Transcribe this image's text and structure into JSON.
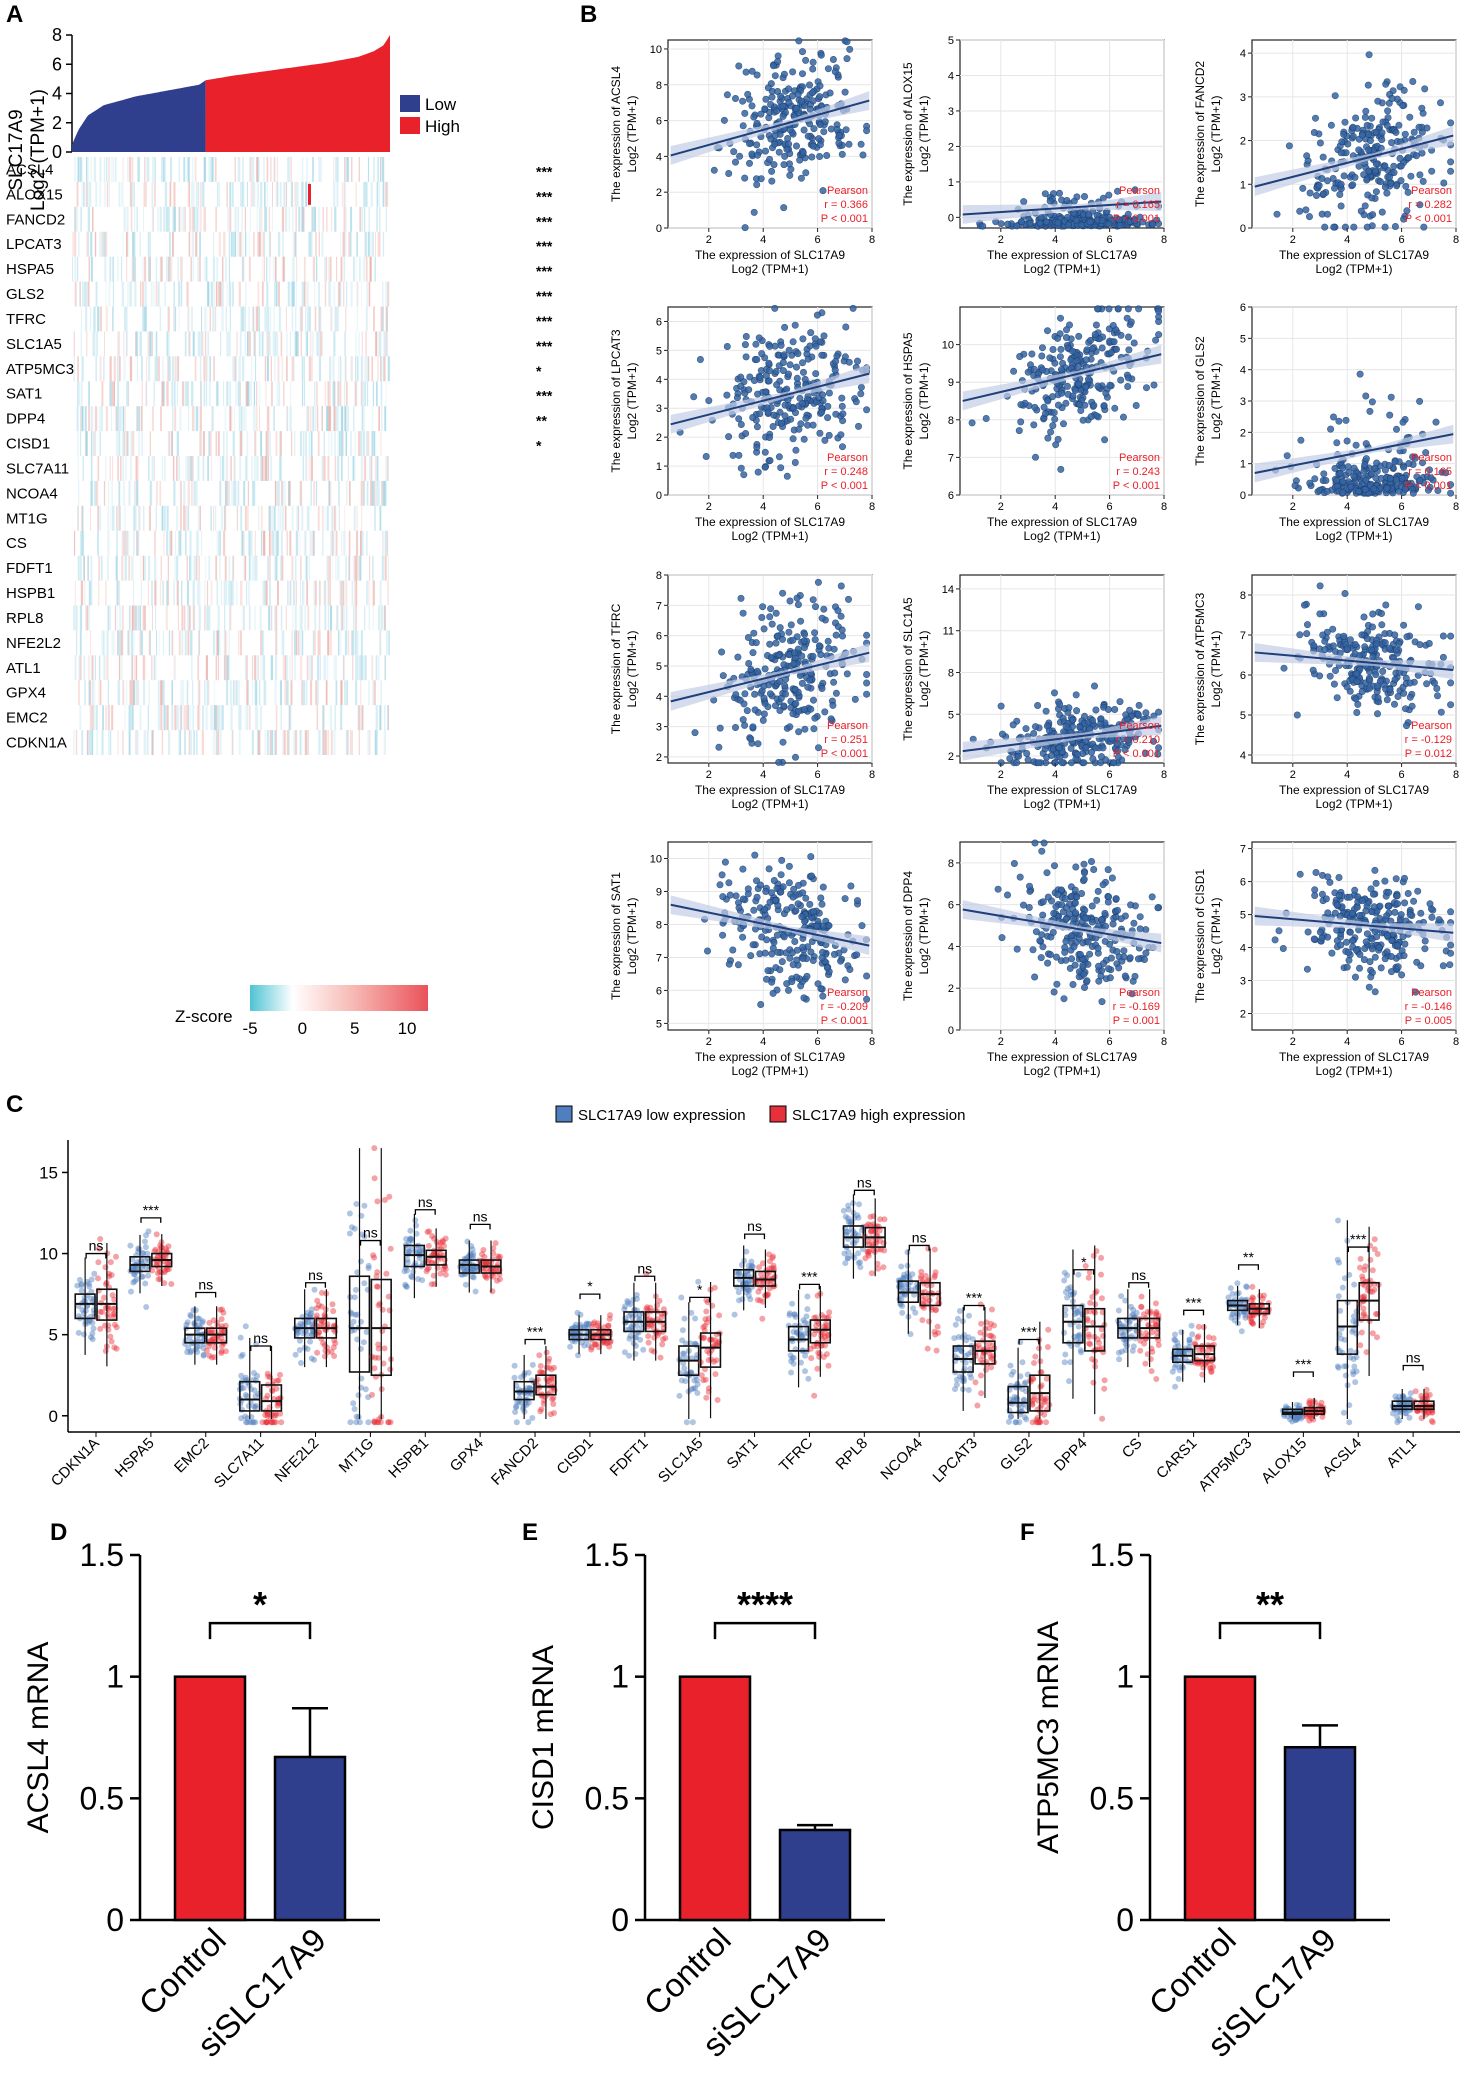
{
  "panel_labels": {
    "a": "A",
    "b": "B",
    "c": "C",
    "d": "D",
    "e": "E",
    "f": "F"
  },
  "colors": {
    "low": "#2f3f8e",
    "high": "#e8212a",
    "scatter": "#3565a3",
    "line": "#1f3f7a",
    "band": "#c3cde6",
    "stat": "#e8212a",
    "box_low": "#4f7fbf",
    "box_high": "#e8303a"
  },
  "panel_a": {
    "ylabel_line1": "SLC17A9",
    "ylabel_line2": "Log2 (TPM+1)",
    "yticks": [
      "0",
      "2",
      "4",
      "6",
      "8"
    ],
    "ylim": [
      0,
      8
    ],
    "legend": [
      "Low",
      "High"
    ],
    "genes": [
      "ACSL4",
      "ALOX15",
      "FANCD2",
      "LPCAT3",
      "HSPA5",
      "GLS2",
      "TFRC",
      "SLC1A5",
      "ATP5MC3",
      "SAT1",
      "DPP4",
      "CISD1",
      "SLC7A11",
      "NCOA4",
      "MT1G",
      "CS",
      "FDFT1",
      "HSPB1",
      "RPL8",
      "NFE2L2",
      "ATL1",
      "GPX4",
      "EMC2",
      "CDKN1A"
    ],
    "sig": [
      "***",
      "***",
      "***",
      "***",
      "***",
      "***",
      "***",
      "***",
      "*",
      "***",
      "**",
      "*",
      "",
      "",
      "",
      "",
      "",
      "",
      "",
      "",
      "",
      "",
      "",
      ""
    ],
    "zscore_label": "Z-score",
    "zscore_ticks": [
      "-5",
      "0",
      "5",
      "10"
    ]
  },
  "panel_b": {
    "xlabel_line1": "The expression of SLC17A9",
    "xlabel_line2": "Log2 (TPM+1)",
    "ylabel_prefix": "The expression of",
    "ylabel_unit": "Log2 (TPM+1)",
    "xticks": [
      "2",
      "4",
      "6",
      "8"
    ],
    "pearson_label": "Pearson"
  },
  "panel_c": {
    "legend": [
      "SLC17A9 low expression",
      "SLC17A9 high expression"
    ],
    "yticks": [
      "0",
      "5",
      "10",
      "15"
    ],
    "ylim": [
      -1,
      17
    ]
  },
  "panel_def": {
    "categories": [
      "Control",
      "siSLC17A9"
    ],
    "yticks": [
      "0",
      "0.5",
      "1",
      "1.5"
    ],
    "ylim": [
      0,
      1.5
    ]
  },
  "chart_data": [
    {
      "type": "heatmap",
      "panel": "A",
      "title": "",
      "ylabel": "SLC17A9 Log2 (TPM+1)",
      "sorted_expression_profile_x": [
        0,
        0.02,
        0.05,
        0.1,
        0.2,
        0.3,
        0.4,
        0.42,
        0.5,
        0.6,
        0.7,
        0.8,
        0.9,
        0.95,
        0.98,
        1.0
      ],
      "sorted_expression_profile_y": [
        0.5,
        1.5,
        2.5,
        3.2,
        3.8,
        4.2,
        4.6,
        4.9,
        5.2,
        5.5,
        5.8,
        6.1,
        6.5,
        6.9,
        7.3,
        8.0
      ],
      "low_high_split_fraction": 0.42,
      "legend": [
        "Low",
        "High"
      ],
      "rows": [
        "ACSL4",
        "ALOX15",
        "FANCD2",
        "LPCAT3",
        "HSPA5",
        "GLS2",
        "TFRC",
        "SLC1A5",
        "ATP5MC3",
        "SAT1",
        "DPP4",
        "CISD1",
        "SLC7A11",
        "NCOA4",
        "MT1G",
        "CS",
        "FDFT1",
        "HSPB1",
        "RPL8",
        "NFE2L2",
        "ATL1",
        "GPX4",
        "EMC2",
        "CDKN1A"
      ],
      "significance": [
        "***",
        "***",
        "***",
        "***",
        "***",
        "***",
        "***",
        "***",
        "*",
        "***",
        "**",
        "*",
        "",
        "",
        "",
        "",
        "",
        "",
        "",
        "",
        "",
        "",
        "",
        ""
      ],
      "colorbar": {
        "label": "Z-score",
        "range": [
          -5,
          12
        ],
        "ticks": [
          -5,
          0,
          5,
          10
        ]
      }
    },
    {
      "type": "scatter",
      "panel": "B",
      "xlabel": "The expression of SLC17A9 Log2 (TPM+1)",
      "xlim": [
        0.5,
        8
      ],
      "xticks": [
        2,
        4,
        6,
        8
      ],
      "subplots": [
        {
          "gene": "ACSL4",
          "ylim": [
            0,
            10.5
          ],
          "yticks": [
            0,
            2,
            4,
            6,
            8,
            10
          ],
          "r": "r = 0.366",
          "p": "P < 0.001",
          "rv": 0.366,
          "slope": 0.42,
          "intercept": 3.8,
          "ymean": 5.9,
          "ysd": 1.8
        },
        {
          "gene": "ALOX15",
          "ylim": [
            -0.3,
            5
          ],
          "yticks": [
            0,
            1,
            2,
            3,
            4,
            5
          ],
          "r": "r = 0.165",
          "p": "P < 0.001",
          "rv": 0.165,
          "slope": 0.05,
          "intercept": 0.05,
          "ymean": 0.3,
          "ysd": 0.4
        },
        {
          "gene": "FANCD2",
          "ylim": [
            0,
            4.3
          ],
          "yticks": [
            0,
            1,
            2,
            3,
            4
          ],
          "r": "r = 0.282",
          "p": "P < 0.001",
          "rv": 0.282,
          "slope": 0.16,
          "intercept": 0.85,
          "ymean": 1.7,
          "ysd": 0.8
        },
        {
          "gene": "LPCAT3",
          "ylim": [
            0,
            6.5
          ],
          "yticks": [
            0,
            1,
            2,
            3,
            4,
            5,
            6
          ],
          "r": "r = 0.248",
          "p": "P < 0.001",
          "rv": 0.248,
          "slope": 0.24,
          "intercept": 2.3,
          "ymean": 3.5,
          "ysd": 1.2
        },
        {
          "gene": "HSPA5",
          "ylim": [
            6,
            11
          ],
          "yticks": [
            6,
            7,
            8,
            9,
            10
          ],
          "r": "r = 0.243",
          "p": "P < 0.001",
          "rv": 0.243,
          "slope": 0.17,
          "intercept": 8.4,
          "ymean": 9.2,
          "ysd": 0.8
        },
        {
          "gene": "GLS2",
          "ylim": [
            0,
            6
          ],
          "yticks": [
            0,
            1,
            2,
            3,
            4,
            5,
            6
          ],
          "r": "r = 0.165",
          "p": "P < 0.001",
          "rv": 0.165,
          "slope": 0.17,
          "intercept": 0.6,
          "ymean": 1.2,
          "ysd": 1.3
        },
        {
          "gene": "TFRC",
          "ylim": [
            1.8,
            8
          ],
          "yticks": [
            2,
            3,
            4,
            5,
            6,
            7,
            8
          ],
          "r": "r = 0.251",
          "p": "P < 0.001",
          "rv": 0.251,
          "slope": 0.22,
          "intercept": 3.7,
          "ymean": 4.8,
          "ysd": 1.1
        },
        {
          "gene": "SLC1A5",
          "ylim": [
            1.5,
            15
          ],
          "yticks": [
            2,
            5,
            8,
            11,
            14
          ],
          "r": "r = 0.210",
          "p": "P < 0.001",
          "rv": 0.21,
          "slope": 0.25,
          "intercept": 2.2,
          "ymean": 3.5,
          "ysd": 1.3
        },
        {
          "gene": "ATP5MC3",
          "ylim": [
            3.8,
            8.5
          ],
          "yticks": [
            4,
            5,
            6,
            7,
            8
          ],
          "r": "r = -0.129",
          "p": "P = 0.012",
          "rv": -0.129,
          "slope": -0.06,
          "intercept": 6.6,
          "ymean": 6.3,
          "ysd": 0.6
        },
        {
          "gene": "SAT1",
          "ylim": [
            4.8,
            10.5
          ],
          "yticks": [
            5,
            6,
            7,
            8,
            9,
            10
          ],
          "r": "r = -0.209",
          "p": "P < 0.001",
          "rv": -0.209,
          "slope": -0.17,
          "intercept": 8.7,
          "ymean": 8.0,
          "ysd": 0.9
        },
        {
          "gene": "DPP4",
          "ylim": [
            0,
            9
          ],
          "yticks": [
            0,
            2,
            4,
            6,
            8
          ],
          "r": "r = -0.169",
          "p": "P = 0.001",
          "rv": -0.169,
          "slope": -0.22,
          "intercept": 5.9,
          "ymean": 5.0,
          "ysd": 1.5
        },
        {
          "gene": "CISD1",
          "ylim": [
            1.5,
            7.2
          ],
          "yticks": [
            2,
            3,
            4,
            5,
            6,
            7
          ],
          "r": "r = -0.146",
          "p": "P = 0.005",
          "rv": -0.146,
          "slope": -0.07,
          "intercept": 5.0,
          "ymean": 4.7,
          "ysd": 0.7
        }
      ]
    },
    {
      "type": "box",
      "panel": "C",
      "ylim": [
        -1,
        17
      ],
      "legend": [
        "SLC17A9 low expression",
        "SLC17A9 high expression"
      ],
      "categories": [
        "CDKN1A",
        "HSPA5",
        "EMC2",
        "SLC7A11",
        "NFE2L2",
        "MT1G",
        "HSPB1",
        "GPX4",
        "FANCD2",
        "CISD1",
        "FDFT1",
        "SLC1A5",
        "SAT1",
        "TFRC",
        "RPL8",
        "NCOA4",
        "LPCAT3",
        "GLS2",
        "DPP4",
        "CS",
        "CARS1",
        "ATP5MC3",
        "ALOX15",
        "ACSL4",
        "ATL1"
      ],
      "significance": [
        "ns",
        "***",
        "ns",
        "ns",
        "ns",
        "ns",
        "ns",
        "ns",
        "***",
        "*",
        "ns",
        "*",
        "ns",
        "***",
        "ns",
        "ns",
        "***",
        "***",
        "*",
        "ns",
        "***",
        "**",
        "***",
        "***",
        "ns"
      ],
      "series": [
        {
          "name": "SLC17A9 low expression",
          "medians": [
            6.9,
            9.3,
            5.0,
            1.0,
            5.4,
            5.4,
            9.9,
            9.3,
            1.5,
            5.0,
            5.8,
            3.4,
            8.5,
            4.7,
            11.0,
            7.6,
            3.5,
            0.8,
            5.8,
            5.4,
            3.7,
            6.8,
            0.2,
            5.5,
            0.6
          ],
          "q1": [
            6.0,
            8.9,
            4.5,
            0.3,
            4.8,
            2.7,
            9.2,
            8.8,
            1.0,
            4.7,
            5.2,
            2.5,
            8.0,
            4.0,
            10.4,
            7.0,
            2.7,
            0.2,
            4.5,
            4.8,
            3.3,
            6.5,
            0.1,
            3.8,
            0.4
          ],
          "q3": [
            7.5,
            9.8,
            5.4,
            2.1,
            6.0,
            8.6,
            10.5,
            9.6,
            2.1,
            5.3,
            6.4,
            4.3,
            9.0,
            5.5,
            11.7,
            8.3,
            4.3,
            1.8,
            6.8,
            6.0,
            4.1,
            7.1,
            0.4,
            7.1,
            0.9
          ]
        },
        {
          "name": "SLC17A9 high expression",
          "medians": [
            6.9,
            9.6,
            5.0,
            0.9,
            5.4,
            5.4,
            9.8,
            9.2,
            1.8,
            5.0,
            5.8,
            4.2,
            8.4,
            5.3,
            11.0,
            7.5,
            4.0,
            1.4,
            5.5,
            5.4,
            3.8,
            6.6,
            0.3,
            7.1,
            0.6
          ],
          "q1": [
            5.9,
            9.2,
            4.5,
            0.3,
            4.8,
            2.5,
            9.3,
            8.8,
            1.3,
            4.7,
            5.2,
            3.0,
            8.0,
            4.5,
            10.4,
            6.8,
            3.2,
            0.3,
            4.0,
            4.8,
            3.4,
            6.3,
            0.1,
            5.9,
            0.4
          ],
          "q3": [
            7.8,
            10.0,
            5.4,
            1.9,
            6.0,
            8.4,
            10.2,
            9.6,
            2.5,
            5.3,
            6.4,
            5.1,
            8.9,
            5.9,
            11.6,
            8.2,
            4.6,
            2.5,
            6.6,
            6.0,
            4.3,
            6.9,
            0.5,
            8.2,
            0.9
          ]
        }
      ]
    },
    {
      "type": "bar",
      "panel": "D",
      "categories": [
        "Control",
        "siSLC17A9"
      ],
      "values": [
        1.0,
        0.67
      ],
      "errors": [
        0,
        0.2
      ],
      "ylabel": "ACSL4 mRNA",
      "ylim": [
        0,
        1.5
      ],
      "significance": "*"
    },
    {
      "type": "bar",
      "panel": "E",
      "categories": [
        "Control",
        "siSLC17A9"
      ],
      "values": [
        1.0,
        0.37
      ],
      "errors": [
        0,
        0.02
      ],
      "ylabel": "CISD1 mRNA",
      "ylim": [
        0,
        1.5
      ],
      "significance": "****"
    },
    {
      "type": "bar",
      "panel": "F",
      "categories": [
        "Control",
        "siSLC17A9"
      ],
      "values": [
        1.0,
        0.71
      ],
      "errors": [
        0,
        0.09
      ],
      "ylabel": "ATP5MC3 mRNA",
      "ylim": [
        0,
        1.5
      ],
      "significance": "**"
    }
  ]
}
